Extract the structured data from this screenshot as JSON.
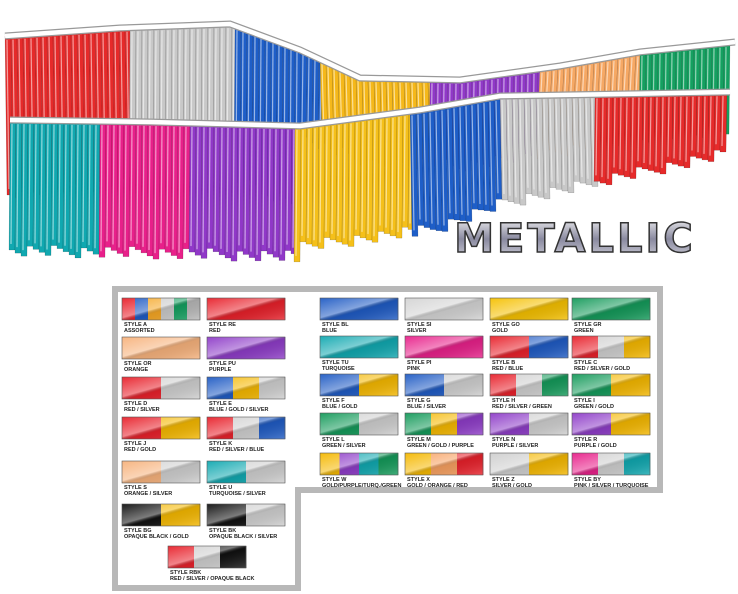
{
  "title": "METALLIC",
  "swatches": [
    {
      "label": "STYLE A",
      "desc": "ASSORTED",
      "colors": [
        "#e8202a",
        "#1f5bc4",
        "#f5a623",
        "#c9c9c9",
        "#14a060",
        "#b8b8b8"
      ]
    },
    {
      "label": "STYLE RE",
      "desc": "RED",
      "colors": [
        "#e8202a"
      ]
    },
    {
      "label": "STYLE OR",
      "desc": "ORANGE",
      "colors": [
        "#f7b27c"
      ]
    },
    {
      "label": "STYLE PU",
      "desc": "PURPLE",
      "colors": [
        "#8e3cc8"
      ]
    },
    {
      "label": "STYLE D",
      "desc": "RED / SILVER",
      "colors": [
        "#e8202a",
        "#cfcfcf"
      ]
    },
    {
      "label": "STYLE E",
      "desc": "BLUE / GOLD / SILVER",
      "colors": [
        "#1f5bc4",
        "#f5b800",
        "#cfcfcf"
      ]
    },
    {
      "label": "STYLE J",
      "desc": "RED / GOLD",
      "colors": [
        "#e8202a",
        "#f5b800"
      ]
    },
    {
      "label": "STYLE K",
      "desc": "RED / SILVER / BLUE",
      "colors": [
        "#e8202a",
        "#cfcfcf",
        "#1f5bc4"
      ]
    },
    {
      "label": "STYLE S",
      "desc": "ORANGE / SILVER",
      "colors": [
        "#f7b27c",
        "#cfcfcf"
      ]
    },
    {
      "label": "STYLE U",
      "desc": "TURQUOISE / SILVER",
      "colors": [
        "#10a8b0",
        "#cfcfcf"
      ]
    },
    {
      "label": "STYLE BG",
      "desc": "OPAQUE BLACK / GOLD",
      "colors": [
        "#111111",
        "#f5b800"
      ]
    },
    {
      "label": "STYLE BK",
      "desc": "OPAQUE BLACK / SILVER",
      "colors": [
        "#111111",
        "#cfcfcf"
      ]
    },
    {
      "label": "STYLE RBK",
      "desc": "RED / SILVER / OPAQUE BLACK",
      "colors": [
        "#e8202a",
        "#cfcfcf",
        "#111111"
      ]
    },
    {
      "label": "STYLE BL",
      "desc": "BLUE",
      "colors": [
        "#1f5bc4"
      ]
    },
    {
      "label": "STYLE SI",
      "desc": "SILVER",
      "colors": [
        "#d4d4d4"
      ]
    },
    {
      "label": "STYLE GO",
      "desc": "GOLD",
      "colors": [
        "#f5c000"
      ]
    },
    {
      "label": "STYLE GR",
      "desc": "GREEN",
      "colors": [
        "#149a5a"
      ]
    },
    {
      "label": "STYLE TU",
      "desc": "TURQUOISE",
      "colors": [
        "#10a8b0"
      ]
    },
    {
      "label": "STYLE PI",
      "desc": "PINK",
      "colors": [
        "#e8208a"
      ]
    },
    {
      "label": "STYLE B",
      "desc": "RED / BLUE",
      "colors": [
        "#e8202a",
        "#1f5bc4"
      ]
    },
    {
      "label": "STYLE C",
      "desc": "RED / SILVER / GOLD",
      "colors": [
        "#e8202a",
        "#cfcfcf",
        "#f5b800"
      ]
    },
    {
      "label": "STYLE F",
      "desc": "BLUE / GOLD",
      "colors": [
        "#1f5bc4",
        "#f5b800"
      ]
    },
    {
      "label": "STYLE G",
      "desc": "BLUE / SILVER",
      "colors": [
        "#1f5bc4",
        "#cfcfcf"
      ]
    },
    {
      "label": "STYLE H",
      "desc": "RED / SILVER / GREEN",
      "colors": [
        "#e8202a",
        "#cfcfcf",
        "#149a5a"
      ]
    },
    {
      "label": "STYLE I",
      "desc": "GREEN / GOLD",
      "colors": [
        "#149a5a",
        "#f5b800"
      ]
    },
    {
      "label": "STYLE L",
      "desc": "GREEN / SILVER",
      "colors": [
        "#149a5a",
        "#cfcfcf"
      ]
    },
    {
      "label": "STYLE M",
      "desc": "GREEN / GOLD / PURPLE",
      "colors": [
        "#149a5a",
        "#f5b800",
        "#8e3cc8"
      ]
    },
    {
      "label": "STYLE N",
      "desc": "PURPLE / SILVER",
      "colors": [
        "#8e3cc8",
        "#cfcfcf"
      ]
    },
    {
      "label": "STYLE R",
      "desc": "PURPLE / GOLD",
      "colors": [
        "#8e3cc8",
        "#f5b800"
      ]
    },
    {
      "label": "STYLE W",
      "desc": "GOLD/PURPLE/TURQ./GREEN",
      "colors": [
        "#f5b800",
        "#8e3cc8",
        "#10a8b0",
        "#149a5a"
      ]
    },
    {
      "label": "STYLE X",
      "desc": "GOLD / ORANGE / RED",
      "colors": [
        "#f5b800",
        "#f7a060",
        "#e8202a"
      ]
    },
    {
      "label": "STYLE Z",
      "desc": "SILVER / GOLD",
      "colors": [
        "#cfcfcf",
        "#f5b800"
      ]
    },
    {
      "label": "STYLE BY",
      "desc": "PINK / SILVER / TURQUOISE",
      "colors": [
        "#e8208a",
        "#cfcfcf",
        "#10a8b0"
      ]
    }
  ]
}
